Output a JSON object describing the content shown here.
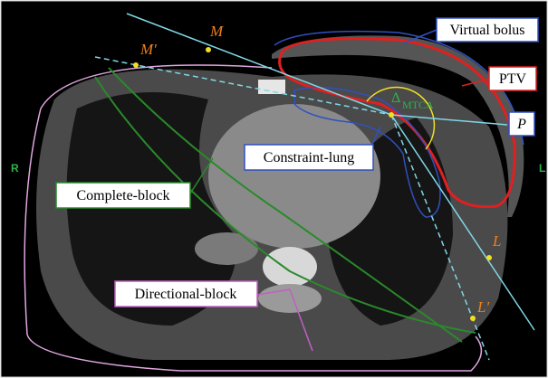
{
  "points": {
    "M": "M",
    "M_prime": "M′",
    "P": "P",
    "L": "L",
    "L_prime": "L′"
  },
  "angle": {
    "symbol": "Δ",
    "subscript": "MTCA"
  },
  "callouts": {
    "virtual_bolus": "Virtual bolus",
    "ptv": "PTV",
    "constraint_lung": "Constraint-lung",
    "complete_block": "Complete-block",
    "directional_block": "Directional-block"
  },
  "sides": {
    "right": "R",
    "left": "L"
  }
}
